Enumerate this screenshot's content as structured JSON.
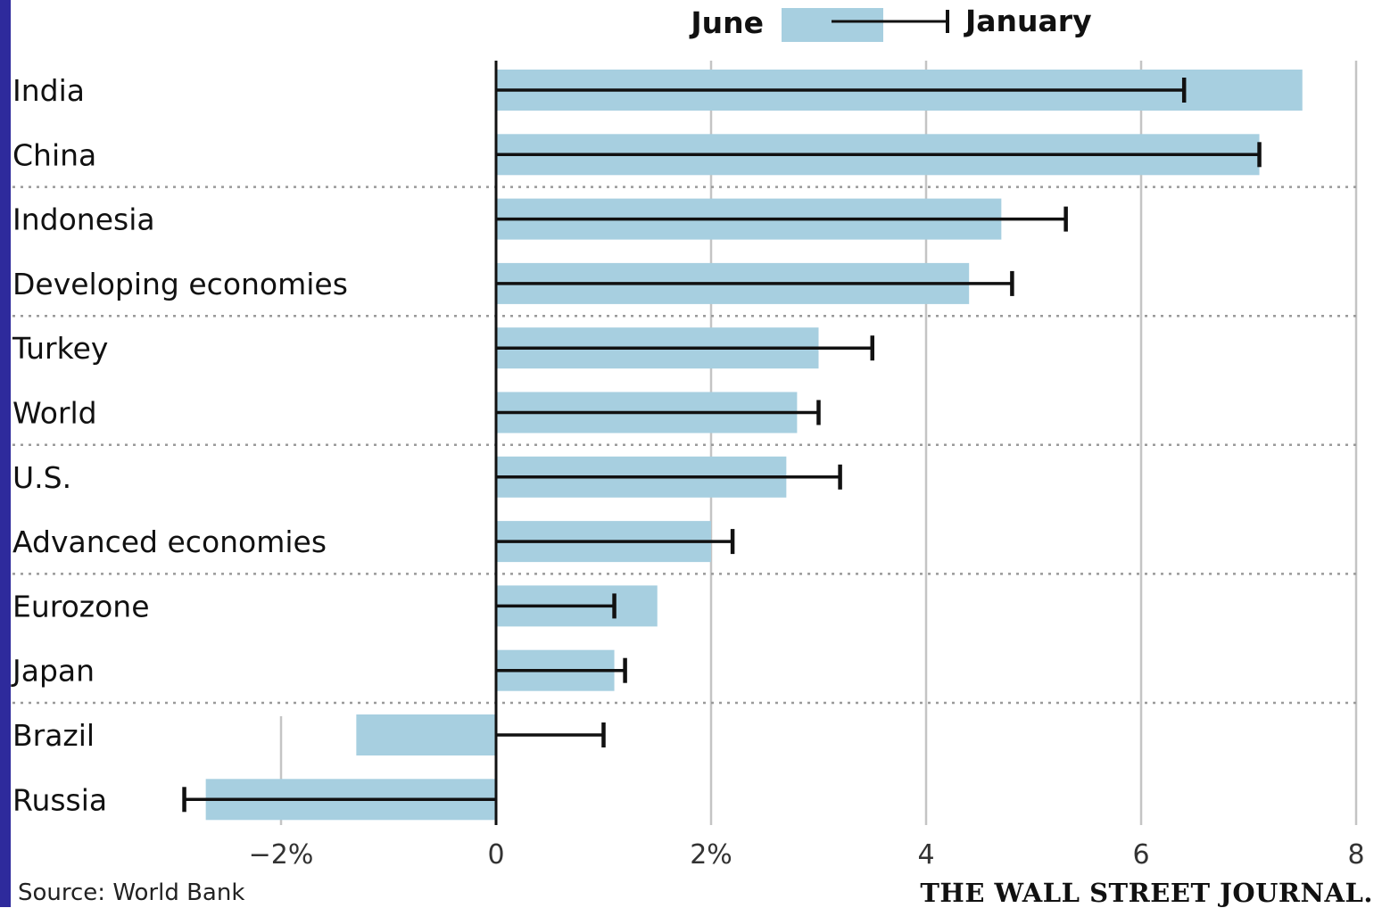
{
  "colors": {
    "june_bar": "#a7cfe0",
    "january_marker": "#111111",
    "frame_stripe": "#2e2a9c",
    "grid": "#c4c4c4"
  },
  "legend": {
    "june": "June",
    "january": "January"
  },
  "source": "Source: World Bank",
  "masthead": "THE WALL STREET JOURNAL.",
  "chart_data": {
    "type": "bar",
    "orientation": "horizontal",
    "categories": [
      "India",
      "China",
      "Indonesia",
      "Developing economies",
      "Turkey",
      "World",
      "U.S.",
      "Advanced economies",
      "Eurozone",
      "Japan",
      "Brazil",
      "Russia"
    ],
    "series": [
      {
        "name": "June",
        "style": "bar",
        "values": [
          7.5,
          7.1,
          4.7,
          4.4,
          3.0,
          2.8,
          2.7,
          2.0,
          1.5,
          1.1,
          -1.3,
          -2.7
        ]
      },
      {
        "name": "January",
        "style": "line-marker",
        "values": [
          6.4,
          7.1,
          5.3,
          4.8,
          3.5,
          3.0,
          3.2,
          2.2,
          1.1,
          1.2,
          1.0,
          -2.9
        ]
      }
    ],
    "xlim": [
      -2,
      8
    ],
    "xticks": [
      {
        "value": -2,
        "label": "−2%"
      },
      {
        "value": 0,
        "label": "0"
      },
      {
        "value": 2,
        "label": "2%"
      },
      {
        "value": 4,
        "label": "4"
      },
      {
        "value": 6,
        "label": "6"
      },
      {
        "value": 8,
        "label": "8"
      }
    ],
    "grid": true,
    "legend_position": "top"
  }
}
